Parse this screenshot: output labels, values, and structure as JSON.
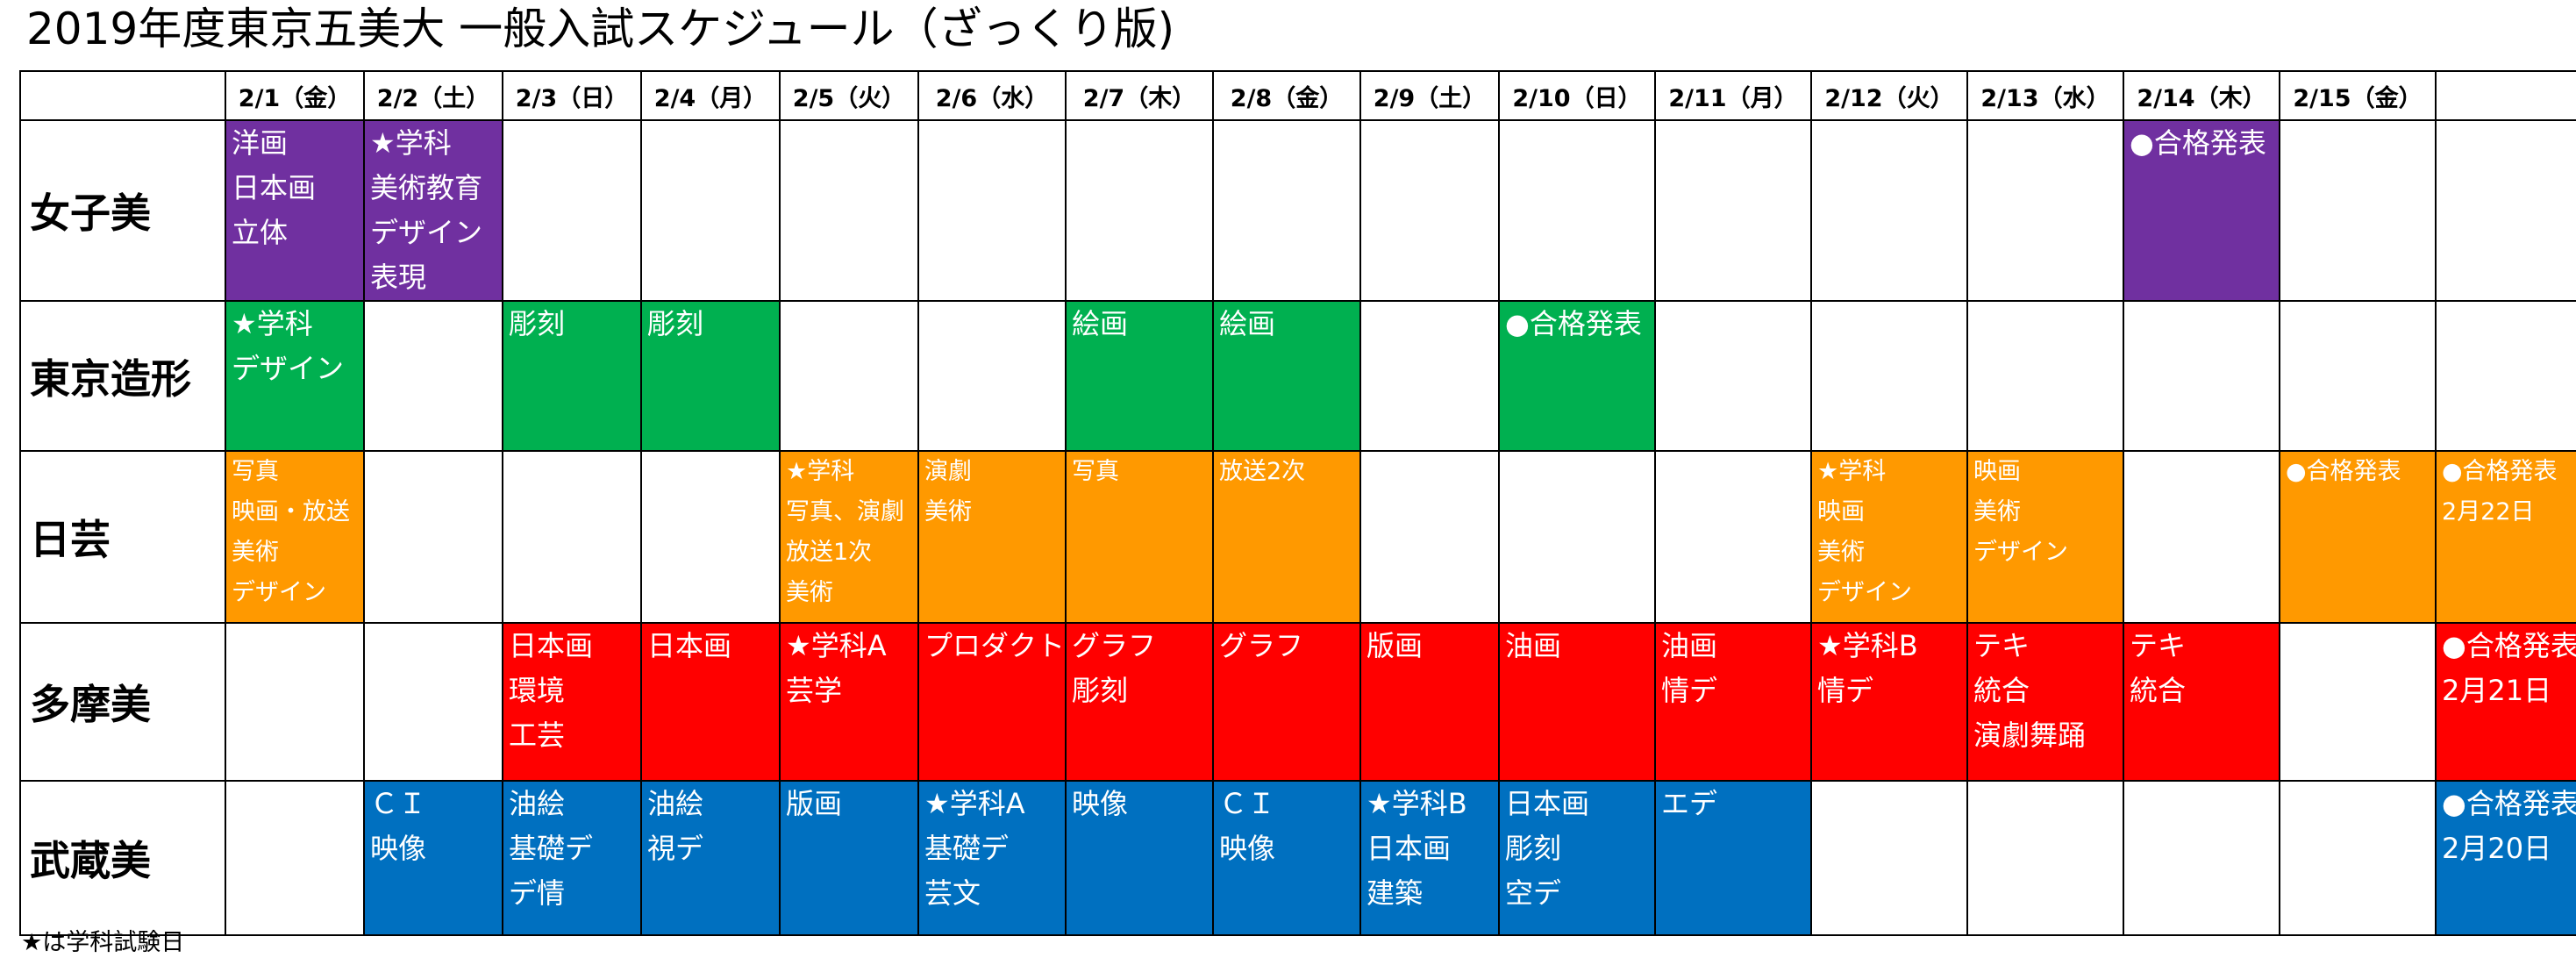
{
  "title": "2019年度東京五美大 一般入試スケジュール（ざっくり版)",
  "dates": [
    "2/1（金）",
    "2/2（土）",
    "2/3（日）",
    "2/4（月）",
    "2/5（火）",
    "2/6（水）",
    "2/7（木）",
    "2/8（金）",
    "2/9（土）",
    "2/10（日）",
    "2/11（月）",
    "2/12（火）",
    "2/13（水）",
    "2/14（木）",
    "2/15（金）",
    ""
  ],
  "colors": {
    "女子美": "#7030a0",
    "東京造形": "#00b050",
    "日芸": "#ff9900",
    "多摩美": "#ff0000",
    "武蔵美": "#0070c0"
  },
  "rows": [
    {
      "name": "女子美",
      "color": "purple",
      "size": "l",
      "cells": [
        [
          "洋画",
          "日本画",
          "立体"
        ],
        [
          "★学科",
          "美術教育",
          "デザイン",
          "表現"
        ],
        null,
        null,
        null,
        null,
        null,
        null,
        null,
        null,
        null,
        null,
        null,
        [
          "●合格発表"
        ],
        null,
        null
      ]
    },
    {
      "name": "東京造形",
      "color": "green",
      "size": "l",
      "cells": [
        [
          "★学科",
          "デザイン"
        ],
        null,
        [
          "彫刻"
        ],
        [
          "彫刻"
        ],
        null,
        null,
        [
          "絵画"
        ],
        [
          "絵画"
        ],
        null,
        [
          "●合格発表"
        ],
        null,
        null,
        null,
        null,
        null,
        null
      ]
    },
    {
      "name": "日芸",
      "color": "orange",
      "size": "s",
      "cells": [
        [
          "写真",
          "映画・放送",
          "美術",
          "デザイン"
        ],
        null,
        null,
        null,
        [
          "★学科",
          "写真、演劇",
          "放送1次",
          "美術"
        ],
        [
          "演劇",
          "美術"
        ],
        [
          "写真"
        ],
        [
          "放送2次"
        ],
        null,
        null,
        null,
        [
          "★学科",
          "映画",
          "美術",
          "デザイン"
        ],
        [
          "映画",
          "美術",
          "デザイン"
        ],
        null,
        [
          "●合格発表"
        ],
        [
          "●合格発表",
          "2月22日"
        ]
      ]
    },
    {
      "name": "多摩美",
      "color": "red",
      "size": "l",
      "cells": [
        null,
        null,
        [
          "日本画",
          "環境",
          "工芸"
        ],
        [
          "日本画"
        ],
        [
          "★学科A",
          "芸学"
        ],
        [
          "プロダクト"
        ],
        [
          "グラフ",
          "彫刻"
        ],
        [
          "グラフ"
        ],
        [
          "版画"
        ],
        [
          "油画"
        ],
        [
          "油画",
          "情デ"
        ],
        [
          "★学科B",
          "情デ"
        ],
        [
          "テキ",
          "統合",
          "演劇舞踊"
        ],
        [
          "テキ",
          "統合"
        ],
        null,
        [
          "●合格発表",
          "2月21日"
        ]
      ]
    },
    {
      "name": "武蔵美",
      "color": "blue",
      "size": "l",
      "cells": [
        null,
        [
          "ＣＩ",
          "映像"
        ],
        [
          "油絵",
          "基礎デ",
          "デ情"
        ],
        [
          "油絵",
          "視デ"
        ],
        [
          "版画"
        ],
        [
          "★学科A",
          "基礎デ",
          "芸文"
        ],
        [
          "映像"
        ],
        [
          "ＣＩ",
          "映像"
        ],
        [
          "★学科B",
          "日本画",
          "建築"
        ],
        [
          "日本画",
          "彫刻",
          "空デ"
        ],
        [
          "エデ"
        ],
        null,
        null,
        null,
        null,
        [
          "●合格発表",
          "2月20日"
        ]
      ]
    }
  ],
  "footnote": "★は学科試験日"
}
